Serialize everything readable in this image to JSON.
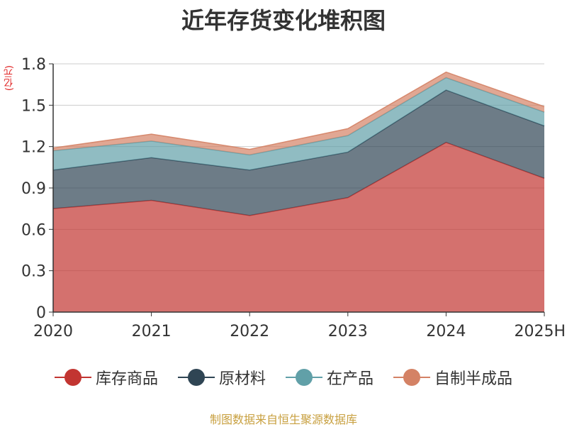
{
  "chart_data": {
    "type": "area",
    "stacked": true,
    "title": "近年存货变化堆积图",
    "ylabel": "(亿元)",
    "xlabel": "",
    "categories": [
      "2020",
      "2021",
      "2022",
      "2023",
      "2024",
      "2025H"
    ],
    "ylim": [
      0,
      1.8
    ],
    "yticks": [
      "0",
      "0.3",
      "0.6",
      "0.9",
      "1.2",
      "1.5",
      "1.8"
    ],
    "grid": true,
    "legend_position": "bottom",
    "series": [
      {
        "name": "库存商品",
        "color": "#c23531",
        "values": [
          0.75,
          0.81,
          0.7,
          0.83,
          1.23,
          0.97
        ]
      },
      {
        "name": "原材料",
        "color": "#2f4554",
        "values": [
          0.28,
          0.31,
          0.33,
          0.33,
          0.38,
          0.38
        ]
      },
      {
        "name": "在产品",
        "color": "#61a0a8",
        "values": [
          0.14,
          0.12,
          0.11,
          0.12,
          0.09,
          0.1
        ]
      },
      {
        "name": "自制半成品",
        "color": "#d48265",
        "values": [
          0.02,
          0.05,
          0.04,
          0.05,
          0.04,
          0.04
        ]
      }
    ]
  },
  "source_text": "制图数据来自恒生聚源数据库"
}
